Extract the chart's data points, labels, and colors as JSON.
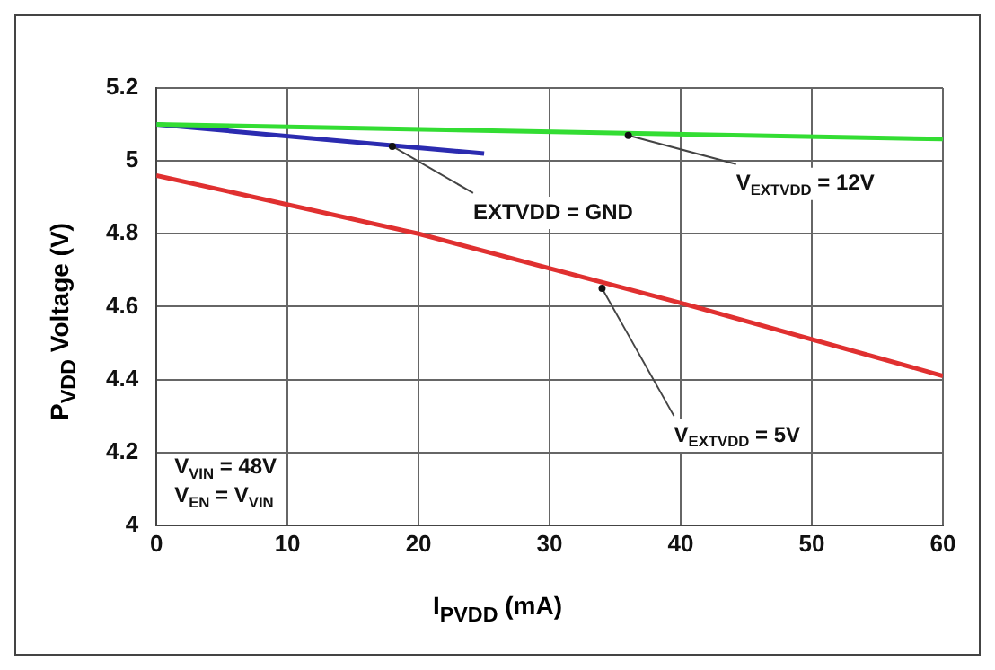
{
  "chart_data": {
    "type": "line",
    "xlabel": "I$_{PVDD}$ (mA)",
    "ylabel": "P$_{VDD}$ Voltage (V)",
    "xlim": [
      0,
      60
    ],
    "xticks": [
      0,
      10,
      20,
      30,
      40,
      50,
      60
    ],
    "ylim": [
      4,
      5.2
    ],
    "yticks": [
      4,
      {
        "value": 4.2,
        "label": "4.2"
      },
      {
        "value": 4.4,
        "label": "4.4"
      },
      {
        "value": 4.6,
        "label": "4.6"
      },
      {
        "value": 4.8,
        "label": "4.8"
      },
      5,
      {
        "value": 5.2,
        "label": "5.2"
      }
    ],
    "grid": true,
    "legend": false,
    "marker": "none",
    "line_style": "solid",
    "series": [
      {
        "color": "#33dd33",
        "x": [
          0,
          60
        ],
        "values": [
          5.1,
          5.06
        ]
      },
      {
        "color": "#2b2bb0",
        "x": [
          0,
          25
        ],
        "values": [
          5.1,
          5.02
        ]
      },
      {
        "color": "#e03030",
        "x": [
          0,
          20,
          40,
          60
        ],
        "values": [
          4.96,
          4.8,
          4.61,
          4.41
        ]
      }
    ],
    "annotations": [
      {
        "text": "V$_{EXTVDD}$ = 12V",
        "x": 36,
        "y": 5.07
      },
      {
        "text": "EXTVDD = GND",
        "x": 18,
        "y": 5.04
      },
      {
        "text": "V$_{EXTVDD}$ = 5V",
        "x": 34,
        "y": 4.65
      },
      "V$_{VIN}$ = 48V",
      "V$_{EN}$ = V$_{VIN}$"
    ]
  }
}
